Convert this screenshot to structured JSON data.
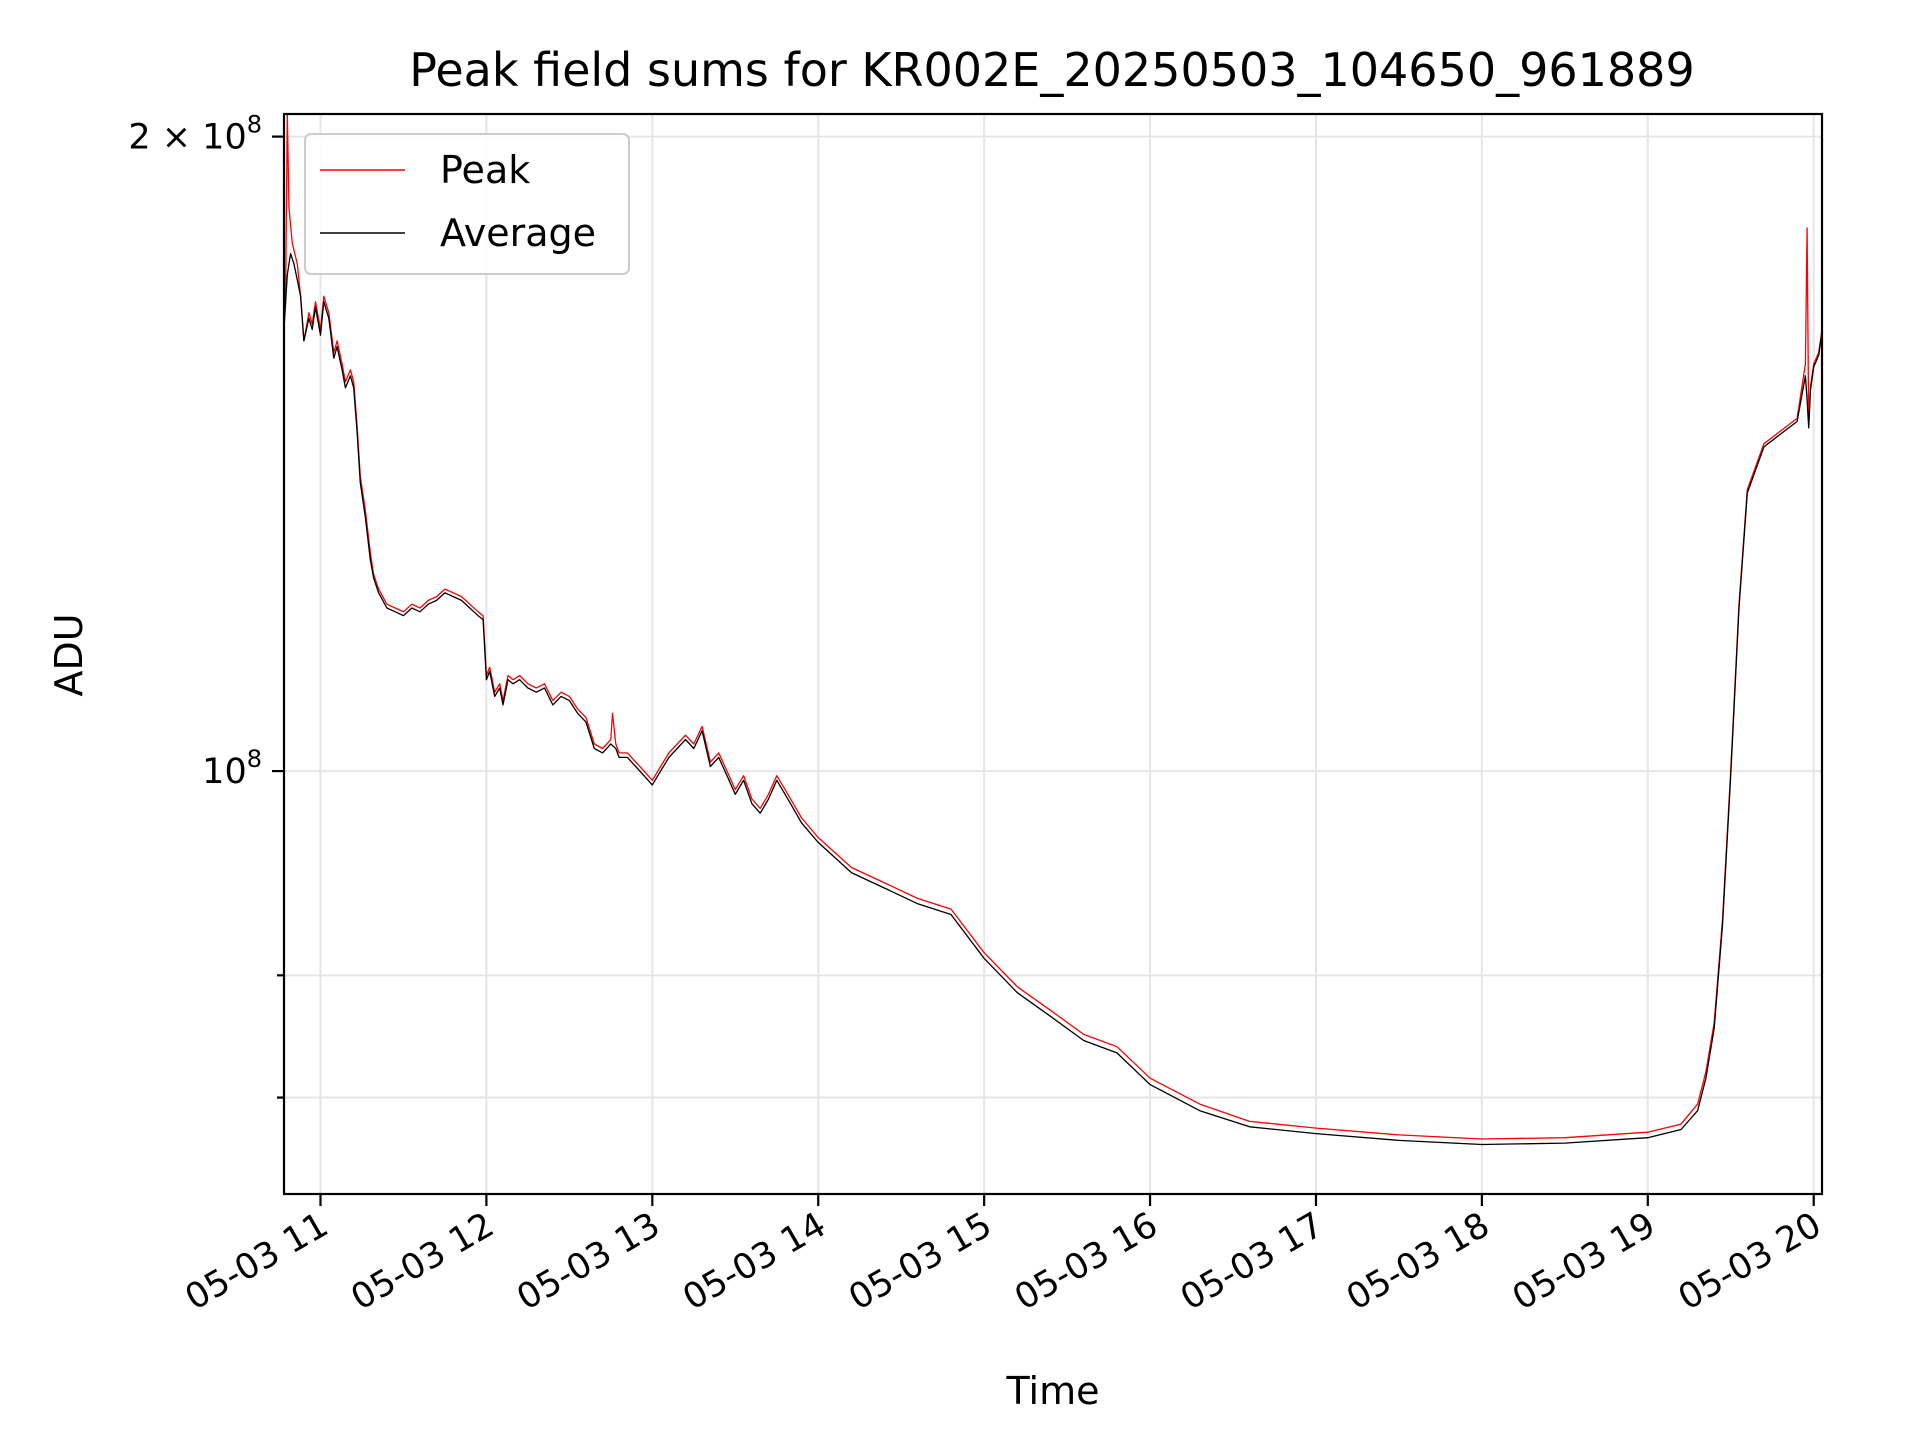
{
  "chart_data": {
    "type": "line",
    "title": "Peak field sums for KR002E_20250503_104650_961889",
    "xlabel": "Time",
    "ylabel": "ADU",
    "yscale": "log",
    "xlim": [
      10.78,
      20.05
    ],
    "ylim": [
      63000000,
      205000000
    ],
    "grid": true,
    "legend": "top-left",
    "x_ticks": [
      {
        "value": 11,
        "label": "05-03 11"
      },
      {
        "value": 12,
        "label": "05-03 12"
      },
      {
        "value": 13,
        "label": "05-03 13"
      },
      {
        "value": 14,
        "label": "05-03 14"
      },
      {
        "value": 15,
        "label": "05-03 15"
      },
      {
        "value": 16,
        "label": "05-03 16"
      },
      {
        "value": 17,
        "label": "05-03 17"
      },
      {
        "value": 18,
        "label": "05-03 18"
      },
      {
        "value": 19,
        "label": "05-03 19"
      },
      {
        "value": 20,
        "label": "05-03 20"
      }
    ],
    "y_major_ticks": [
      {
        "value": 100000000,
        "base": "10",
        "exp": "8"
      },
      {
        "value": 200000000,
        "base": "2 × 10",
        "exp": "8"
      }
    ],
    "y_minor_ticks": [
      70000000,
      80000000
    ],
    "series": [
      {
        "name": "Peak",
        "color": "#ff0000",
        "x": [
          10.78,
          10.79,
          10.8,
          10.81,
          10.83,
          10.86,
          10.88,
          10.9,
          10.93,
          10.95,
          10.97,
          11.0,
          11.02,
          11.05,
          11.08,
          11.1,
          11.13,
          11.15,
          11.18,
          11.2,
          11.22,
          11.24,
          11.27,
          11.3,
          11.32,
          11.35,
          11.4,
          11.45,
          11.5,
          11.55,
          11.6,
          11.65,
          11.7,
          11.75,
          11.8,
          11.85,
          11.9,
          11.95,
          11.98,
          12.0,
          12.02,
          12.05,
          12.08,
          12.1,
          12.13,
          12.16,
          12.2,
          12.25,
          12.3,
          12.35,
          12.4,
          12.45,
          12.5,
          12.55,
          12.6,
          12.65,
          12.7,
          12.75,
          12.76,
          12.78,
          12.8,
          12.85,
          12.9,
          12.95,
          13.0,
          13.05,
          13.1,
          13.15,
          13.2,
          13.25,
          13.3,
          13.35,
          13.4,
          13.45,
          13.5,
          13.55,
          13.6,
          13.65,
          13.7,
          13.75,
          13.8,
          13.85,
          13.9,
          14.0,
          14.2,
          14.4,
          14.6,
          14.8,
          15.0,
          15.2,
          15.4,
          15.6,
          15.8,
          16.0,
          16.3,
          16.6,
          17.0,
          17.5,
          18.0,
          18.5,
          19.0,
          19.2,
          19.3,
          19.35,
          19.4,
          19.45,
          19.5,
          19.55,
          19.6,
          19.7,
          19.8,
          19.9,
          19.95,
          19.96,
          19.97,
          19.98,
          20.0,
          20.03,
          20.05
        ],
        "y": [
          162000000,
          170000000,
          205000000,
          185000000,
          178000000,
          174000000,
          168000000,
          160000000,
          165000000,
          163000000,
          167000000,
          162000000,
          168000000,
          165000000,
          158000000,
          160000000,
          156000000,
          153000000,
          155000000,
          153000000,
          146000000,
          138000000,
          133000000,
          127000000,
          124000000,
          122000000,
          120000000,
          119500000,
          119000000,
          120000000,
          119500000,
          120500000,
          121000000,
          122000000,
          121500000,
          121000000,
          120000000,
          119000000,
          118500000,
          111000000,
          112000000,
          109000000,
          110000000,
          108000000,
          111000000,
          110500000,
          111000000,
          110000000,
          109500000,
          110000000,
          108000000,
          109000000,
          108500000,
          107000000,
          106000000,
          103000000,
          102500000,
          103500000,
          106500000,
          103000000,
          102000000,
          102000000,
          101000000,
          100000000,
          99000000,
          100500000,
          102000000,
          103000000,
          104000000,
          103000000,
          105000000,
          101000000,
          102000000,
          100000000,
          98000000,
          99500000,
          97000000,
          96000000,
          97500000,
          99500000,
          98000000,
          96500000,
          95000000,
          93000000,
          90000000,
          88500000,
          87000000,
          86000000,
          82000000,
          79000000,
          77000000,
          75000000,
          74000000,
          71500000,
          69500000,
          68200000,
          67700000,
          67200000,
          66900000,
          67000000,
          67400000,
          68000000,
          69500000,
          72000000,
          76000000,
          85000000,
          100000000,
          120000000,
          136000000,
          143000000,
          145000000,
          147000000,
          156000000,
          181000000,
          146000000,
          152000000,
          156000000,
          158000000,
          162000000
        ],
        "width": 1.3
      },
      {
        "name": "Average",
        "color": "#000000",
        "x": [
          10.78,
          10.8,
          10.82,
          10.84,
          10.86,
          10.88,
          10.9,
          10.93,
          10.95,
          10.97,
          11.0,
          11.02,
          11.05,
          11.08,
          11.1,
          11.13,
          11.15,
          11.18,
          11.2,
          11.22,
          11.24,
          11.27,
          11.3,
          11.32,
          11.35,
          11.4,
          11.45,
          11.5,
          11.55,
          11.6,
          11.65,
          11.7,
          11.75,
          11.8,
          11.85,
          11.9,
          11.95,
          11.98,
          12.0,
          12.02,
          12.05,
          12.08,
          12.1,
          12.13,
          12.16,
          12.2,
          12.25,
          12.3,
          12.35,
          12.4,
          12.45,
          12.5,
          12.55,
          12.6,
          12.65,
          12.7,
          12.75,
          12.78,
          12.8,
          12.85,
          12.9,
          12.95,
          13.0,
          13.05,
          13.1,
          13.15,
          13.2,
          13.25,
          13.3,
          13.35,
          13.4,
          13.45,
          13.5,
          13.55,
          13.6,
          13.65,
          13.7,
          13.75,
          13.8,
          13.85,
          13.9,
          14.0,
          14.2,
          14.4,
          14.6,
          14.8,
          15.0,
          15.2,
          15.4,
          15.6,
          15.8,
          16.0,
          16.3,
          16.6,
          17.0,
          17.5,
          18.0,
          18.5,
          19.0,
          19.2,
          19.3,
          19.35,
          19.4,
          19.45,
          19.5,
          19.55,
          19.6,
          19.7,
          19.8,
          19.9,
          19.95,
          19.96,
          19.97,
          19.98,
          20.0,
          20.03,
          20.05
        ],
        "y": [
          162000000,
          172000000,
          176000000,
          174000000,
          171000000,
          168000000,
          160000000,
          164000000,
          162000000,
          166000000,
          161000000,
          167000000,
          164000000,
          157000000,
          159000000,
          155000000,
          152000000,
          154000000,
          152000000,
          145000000,
          137000000,
          132000000,
          126000000,
          123500000,
          121500000,
          119500000,
          119000000,
          118500000,
          119500000,
          119000000,
          120000000,
          120500000,
          121500000,
          121000000,
          120500000,
          119500000,
          118500000,
          118000000,
          110500000,
          111500000,
          108500000,
          109500000,
          107500000,
          110500000,
          110000000,
          110500000,
          109500000,
          109000000,
          109500000,
          107500000,
          108500000,
          108000000,
          106500000,
          105500000,
          102500000,
          102000000,
          103000000,
          102500000,
          101500000,
          101500000,
          100500000,
          99500000,
          98500000,
          100000000,
          101500000,
          102500000,
          103500000,
          102500000,
          104500000,
          100500000,
          101500000,
          99500000,
          97500000,
          99000000,
          96500000,
          95500000,
          97000000,
          99000000,
          97500000,
          96000000,
          94500000,
          92500000,
          89500000,
          88000000,
          86500000,
          85500000,
          81500000,
          78500000,
          76500000,
          74500000,
          73500000,
          71000000,
          69000000,
          67800000,
          67300000,
          66800000,
          66500000,
          66600000,
          67000000,
          67600000,
          69000000,
          71500000,
          75500000,
          84500000,
          99500000,
          119500000,
          135500000,
          142500000,
          144500000,
          146500000,
          154000000,
          150000000,
          145500000,
          151500000,
          155500000,
          157500000,
          161500000
        ],
        "width": 1.3
      }
    ]
  }
}
